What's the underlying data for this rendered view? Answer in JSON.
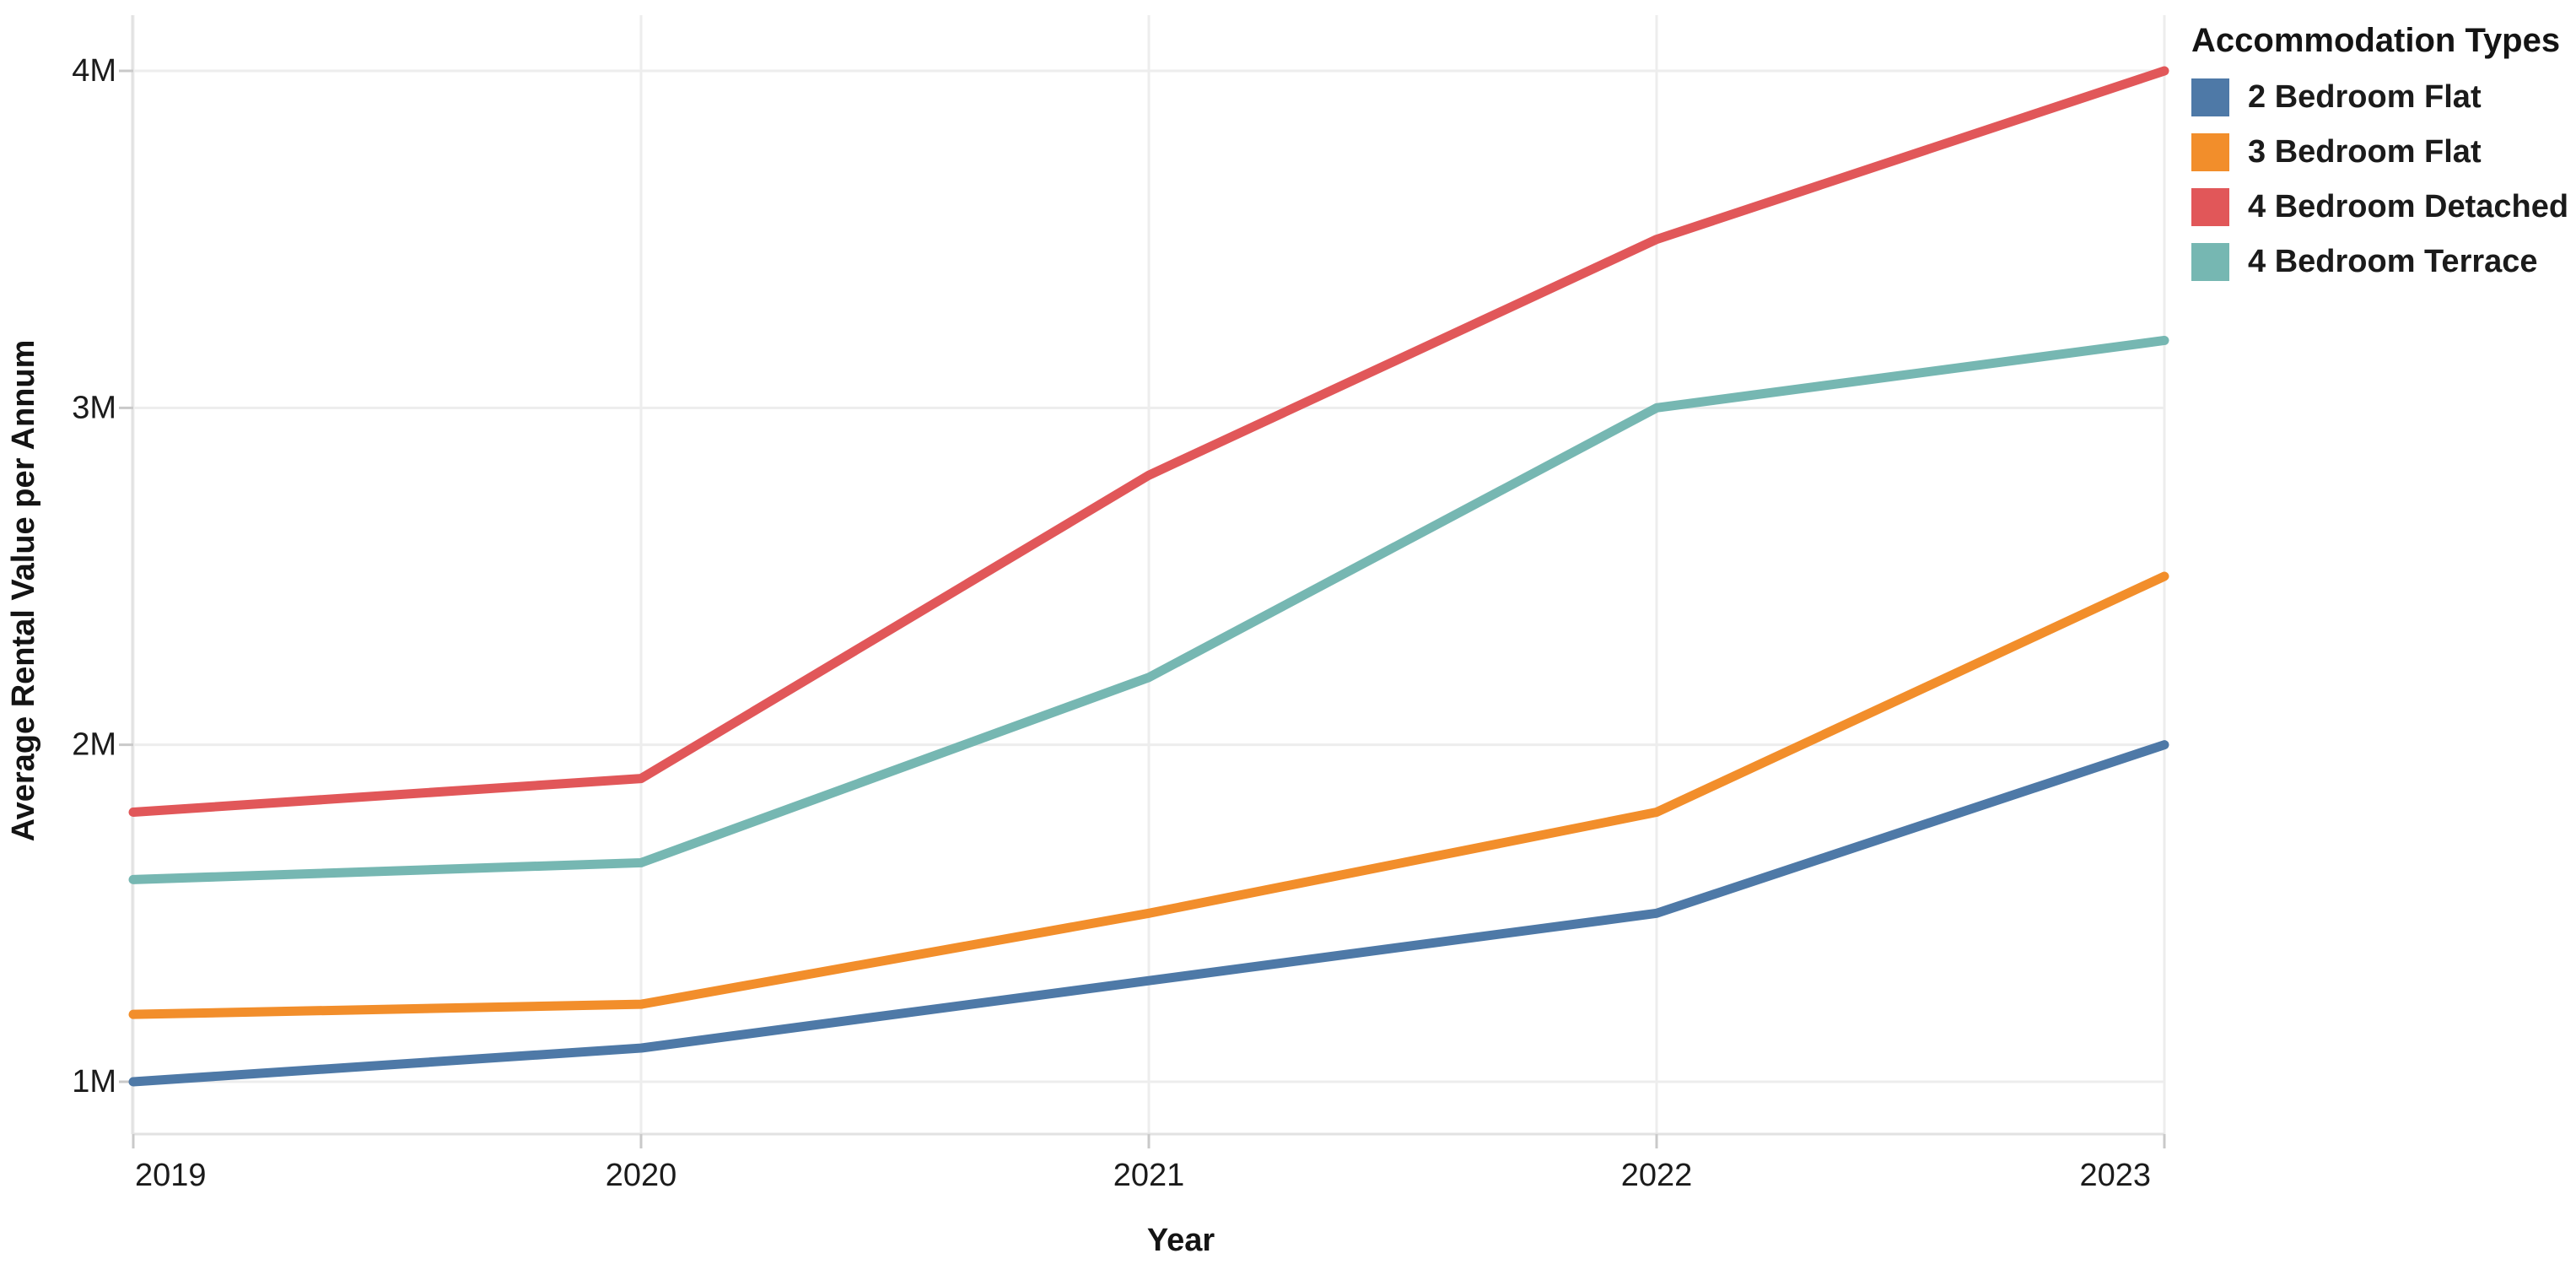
{
  "chart_data": {
    "type": "line",
    "title": "",
    "xlabel": "Year",
    "ylabel": "Average Rental Value per Annum",
    "x": [
      "2019",
      "2020",
      "2021",
      "2022",
      "2023"
    ],
    "y_unit": "M",
    "ylim": [
      0.85,
      4.17
    ],
    "grid": true,
    "legend_title": "Accommodation Types",
    "legend_position": "top-right",
    "yticks": [
      {
        "value": 1,
        "label": "1M"
      },
      {
        "value": 2,
        "label": "2M"
      },
      {
        "value": 3,
        "label": "3M"
      },
      {
        "value": 4,
        "label": "4M"
      }
    ],
    "series": [
      {
        "name": "2 Bedroom Flat",
        "color": "#4E79A7",
        "values": [
          1.0,
          1.1,
          1.3,
          1.5,
          2.0
        ]
      },
      {
        "name": "3 Bedroom Flat",
        "color": "#F28E2B",
        "values": [
          1.2,
          1.23,
          1.5,
          1.8,
          2.5
        ]
      },
      {
        "name": "4 Bedroom Detached",
        "color": "#E15759",
        "values": [
          1.8,
          1.9,
          2.8,
          3.5,
          4.0
        ]
      },
      {
        "name": "4 Bedroom Terrace",
        "color": "#76B7B2",
        "values": [
          1.6,
          1.65,
          2.2,
          3.0,
          3.2
        ]
      }
    ]
  }
}
